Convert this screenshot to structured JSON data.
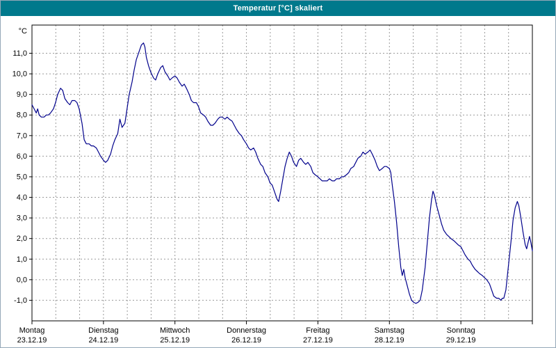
{
  "window": {
    "title": "Temperatur [°C] skaliert"
  },
  "colors": {
    "titlebar": "#00798c",
    "titlebar_text": "#ffffff",
    "plot_background": "#ffffff",
    "frame": "#000000",
    "grid": "#999999",
    "tick": "#000000",
    "text": "#000000",
    "line": "#00008b"
  },
  "chart_data": {
    "type": "line",
    "title": "Temperatur [°C] skaliert",
    "ylabel": "°C",
    "grid": "dashed, both directions",
    "legend": "none",
    "y_axis": {
      "unit_label": "°C",
      "plot_min": -2.0,
      "plot_max": 12.37,
      "tick_values": [
        11,
        10,
        9,
        8,
        7,
        6,
        5,
        4,
        3,
        2,
        1,
        0,
        -1
      ],
      "tick_labels": [
        "11,0",
        "10,0",
        "9,0",
        "8,0",
        "7,0",
        "6,0",
        "5,0",
        "4,0",
        "3,0",
        "2,0",
        "1,0",
        "0,0",
        "-1,0"
      ]
    },
    "x_axis": {
      "minor_gridlines_per_day": 3,
      "days": [
        {
          "name": "Montag",
          "date": "23.12.19"
        },
        {
          "name": "Dienstag",
          "date": "24.12.19"
        },
        {
          "name": "Mittwoch",
          "date": "25.12.19"
        },
        {
          "name": "Donnerstag",
          "date": "26.12.19"
        },
        {
          "name": "Freitag",
          "date": "27.12.19"
        },
        {
          "name": "Samstag",
          "date": "28.12.19"
        },
        {
          "name": "Sonntag",
          "date": "29.12.19"
        }
      ]
    },
    "series": [
      {
        "name": "Temperatur",
        "unit": "°C",
        "points": [
          [
            0.0,
            8.5
          ],
          [
            0.03,
            8.3
          ],
          [
            0.06,
            8.1
          ],
          [
            0.08,
            8.3
          ],
          [
            0.1,
            8.0
          ],
          [
            0.13,
            7.9
          ],
          [
            0.17,
            7.9
          ],
          [
            0.2,
            8.0
          ],
          [
            0.23,
            8.0
          ],
          [
            0.26,
            8.1
          ],
          [
            0.3,
            8.3
          ],
          [
            0.33,
            8.6
          ],
          [
            0.36,
            9.0
          ],
          [
            0.4,
            9.3
          ],
          [
            0.43,
            9.2
          ],
          [
            0.46,
            8.8
          ],
          [
            0.5,
            8.6
          ],
          [
            0.53,
            8.5
          ],
          [
            0.56,
            8.7
          ],
          [
            0.6,
            8.7
          ],
          [
            0.63,
            8.6
          ],
          [
            0.66,
            8.3
          ],
          [
            0.7,
            7.6
          ],
          [
            0.73,
            6.8
          ],
          [
            0.76,
            6.6
          ],
          [
            0.8,
            6.6
          ],
          [
            0.83,
            6.5
          ],
          [
            0.86,
            6.5
          ],
          [
            0.9,
            6.4
          ],
          [
            0.93,
            6.2
          ],
          [
            0.96,
            6.0
          ],
          [
            1.0,
            5.8
          ],
          [
            1.03,
            5.7
          ],
          [
            1.06,
            5.8
          ],
          [
            1.1,
            6.1
          ],
          [
            1.13,
            6.5
          ],
          [
            1.16,
            6.8
          ],
          [
            1.2,
            7.1
          ],
          [
            1.23,
            7.8
          ],
          [
            1.26,
            7.4
          ],
          [
            1.3,
            7.6
          ],
          [
            1.33,
            8.3
          ],
          [
            1.36,
            9.0
          ],
          [
            1.4,
            9.6
          ],
          [
            1.43,
            10.2
          ],
          [
            1.46,
            10.7
          ],
          [
            1.5,
            11.1
          ],
          [
            1.53,
            11.4
          ],
          [
            1.56,
            11.5
          ],
          [
            1.58,
            11.3
          ],
          [
            1.6,
            10.8
          ],
          [
            1.63,
            10.4
          ],
          [
            1.66,
            10.1
          ],
          [
            1.7,
            9.8
          ],
          [
            1.73,
            9.7
          ],
          [
            1.76,
            10.0
          ],
          [
            1.8,
            10.3
          ],
          [
            1.83,
            10.4
          ],
          [
            1.86,
            10.1
          ],
          [
            1.9,
            9.9
          ],
          [
            1.93,
            9.7
          ],
          [
            1.96,
            9.8
          ],
          [
            2.0,
            9.9
          ],
          [
            2.03,
            9.8
          ],
          [
            2.06,
            9.6
          ],
          [
            2.1,
            9.4
          ],
          [
            2.13,
            9.5
          ],
          [
            2.16,
            9.3
          ],
          [
            2.2,
            9.0
          ],
          [
            2.23,
            8.7
          ],
          [
            2.26,
            8.6
          ],
          [
            2.3,
            8.6
          ],
          [
            2.33,
            8.4
          ],
          [
            2.36,
            8.1
          ],
          [
            2.4,
            8.0
          ],
          [
            2.43,
            7.9
          ],
          [
            2.46,
            7.7
          ],
          [
            2.5,
            7.5
          ],
          [
            2.53,
            7.5
          ],
          [
            2.56,
            7.6
          ],
          [
            2.6,
            7.8
          ],
          [
            2.63,
            7.9
          ],
          [
            2.66,
            7.9
          ],
          [
            2.7,
            7.8
          ],
          [
            2.73,
            7.9
          ],
          [
            2.76,
            7.8
          ],
          [
            2.8,
            7.7
          ],
          [
            2.83,
            7.5
          ],
          [
            2.86,
            7.3
          ],
          [
            2.9,
            7.1
          ],
          [
            2.93,
            7.0
          ],
          [
            2.96,
            6.8
          ],
          [
            3.0,
            6.6
          ],
          [
            3.03,
            6.4
          ],
          [
            3.06,
            6.3
          ],
          [
            3.1,
            6.4
          ],
          [
            3.13,
            6.2
          ],
          [
            3.16,
            5.9
          ],
          [
            3.2,
            5.6
          ],
          [
            3.23,
            5.5
          ],
          [
            3.26,
            5.2
          ],
          [
            3.3,
            5.0
          ],
          [
            3.33,
            4.7
          ],
          [
            3.36,
            4.6
          ],
          [
            3.4,
            4.2
          ],
          [
            3.43,
            3.9
          ],
          [
            3.45,
            3.8
          ],
          [
            3.48,
            4.3
          ],
          [
            3.51,
            4.9
          ],
          [
            3.54,
            5.5
          ],
          [
            3.57,
            5.9
          ],
          [
            3.6,
            6.2
          ],
          [
            3.63,
            6.0
          ],
          [
            3.66,
            5.7
          ],
          [
            3.7,
            5.5
          ],
          [
            3.73,
            5.8
          ],
          [
            3.76,
            5.9
          ],
          [
            3.8,
            5.7
          ],
          [
            3.83,
            5.6
          ],
          [
            3.86,
            5.7
          ],
          [
            3.9,
            5.5
          ],
          [
            3.93,
            5.2
          ],
          [
            3.96,
            5.1
          ],
          [
            4.0,
            5.0
          ],
          [
            4.03,
            4.9
          ],
          [
            4.06,
            4.8
          ],
          [
            4.1,
            4.8
          ],
          [
            4.13,
            4.8
          ],
          [
            4.16,
            4.9
          ],
          [
            4.2,
            4.8
          ],
          [
            4.23,
            4.8
          ],
          [
            4.26,
            4.9
          ],
          [
            4.3,
            4.9
          ],
          [
            4.33,
            5.0
          ],
          [
            4.36,
            5.0
          ],
          [
            4.4,
            5.1
          ],
          [
            4.43,
            5.2
          ],
          [
            4.46,
            5.4
          ],
          [
            4.5,
            5.5
          ],
          [
            4.53,
            5.7
          ],
          [
            4.56,
            5.9
          ],
          [
            4.6,
            6.0
          ],
          [
            4.63,
            6.2
          ],
          [
            4.66,
            6.1
          ],
          [
            4.7,
            6.2
          ],
          [
            4.73,
            6.3
          ],
          [
            4.76,
            6.1
          ],
          [
            4.8,
            5.8
          ],
          [
            4.83,
            5.5
          ],
          [
            4.86,
            5.3
          ],
          [
            4.9,
            5.4
          ],
          [
            4.93,
            5.5
          ],
          [
            4.96,
            5.5
          ],
          [
            5.0,
            5.4
          ],
          [
            5.02,
            5.2
          ],
          [
            5.04,
            4.6
          ],
          [
            5.07,
            3.8
          ],
          [
            5.1,
            2.8
          ],
          [
            5.13,
            1.6
          ],
          [
            5.16,
            0.6
          ],
          [
            5.18,
            0.2
          ],
          [
            5.2,
            0.5
          ],
          [
            5.22,
            0.1
          ],
          [
            5.25,
            -0.3
          ],
          [
            5.28,
            -0.7
          ],
          [
            5.31,
            -1.0
          ],
          [
            5.34,
            -1.1
          ],
          [
            5.37,
            -1.15
          ],
          [
            5.4,
            -1.1
          ],
          [
            5.43,
            -1.0
          ],
          [
            5.46,
            -0.5
          ],
          [
            5.5,
            0.6
          ],
          [
            5.53,
            1.8
          ],
          [
            5.56,
            3.0
          ],
          [
            5.59,
            3.9
          ],
          [
            5.61,
            4.3
          ],
          [
            5.63,
            4.1
          ],
          [
            5.66,
            3.6
          ],
          [
            5.7,
            3.1
          ],
          [
            5.73,
            2.7
          ],
          [
            5.76,
            2.4
          ],
          [
            5.8,
            2.2
          ],
          [
            5.83,
            2.1
          ],
          [
            5.86,
            2.0
          ],
          [
            5.9,
            1.9
          ],
          [
            5.93,
            1.8
          ],
          [
            5.96,
            1.7
          ],
          [
            6.0,
            1.6
          ],
          [
            6.03,
            1.4
          ],
          [
            6.06,
            1.2
          ],
          [
            6.1,
            1.0
          ],
          [
            6.13,
            0.9
          ],
          [
            6.16,
            0.7
          ],
          [
            6.2,
            0.5
          ],
          [
            6.23,
            0.4
          ],
          [
            6.26,
            0.3
          ],
          [
            6.3,
            0.2
          ],
          [
            6.33,
            0.1
          ],
          [
            6.36,
            0.0
          ],
          [
            6.4,
            -0.2
          ],
          [
            6.43,
            -0.5
          ],
          [
            6.46,
            -0.8
          ],
          [
            6.5,
            -0.9
          ],
          [
            6.53,
            -0.9
          ],
          [
            6.56,
            -1.0
          ],
          [
            6.58,
            -0.9
          ],
          [
            6.6,
            -0.9
          ],
          [
            6.63,
            -0.5
          ],
          [
            6.66,
            0.5
          ],
          [
            6.7,
            1.8
          ],
          [
            6.73,
            2.9
          ],
          [
            6.76,
            3.5
          ],
          [
            6.79,
            3.8
          ],
          [
            6.81,
            3.6
          ],
          [
            6.84,
            3.0
          ],
          [
            6.87,
            2.3
          ],
          [
            6.9,
            1.7
          ],
          [
            6.92,
            1.5
          ],
          [
            6.94,
            1.8
          ],
          [
            6.96,
            2.1
          ],
          [
            6.98,
            1.8
          ],
          [
            7.0,
            1.4
          ]
        ]
      }
    ]
  }
}
